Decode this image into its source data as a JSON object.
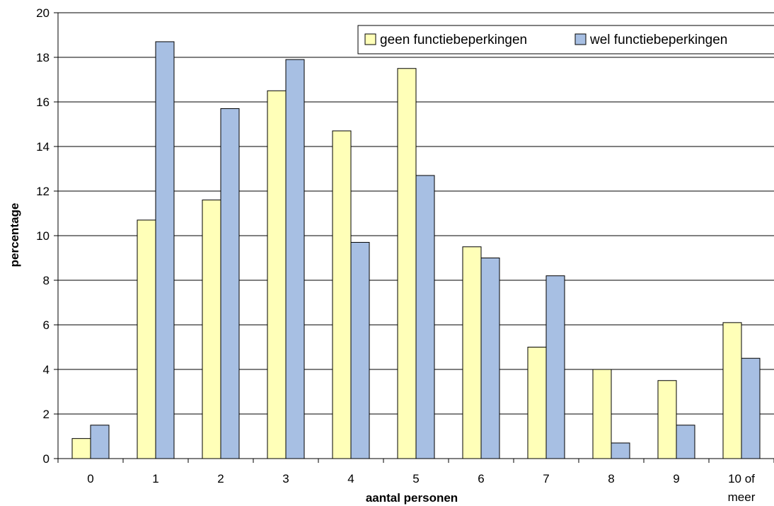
{
  "chart_data": {
    "type": "bar",
    "categories": [
      "0",
      "1",
      "2",
      "3",
      "4",
      "5",
      "6",
      "7",
      "8",
      "9",
      "10 of meer"
    ],
    "category_lines": [
      [
        "0"
      ],
      [
        "1"
      ],
      [
        "2"
      ],
      [
        "3"
      ],
      [
        "4"
      ],
      [
        "5"
      ],
      [
        "6"
      ],
      [
        "7"
      ],
      [
        "8"
      ],
      [
        "9"
      ],
      [
        "10 of",
        "meer"
      ]
    ],
    "series": [
      {
        "name": "geen functiebeperkingen",
        "color": "#FFFFB8",
        "values": [
          0.9,
          10.7,
          11.6,
          16.5,
          14.7,
          17.5,
          9.5,
          5.0,
          4.0,
          3.5,
          6.1
        ]
      },
      {
        "name": "wel functiebeperkingen",
        "color": "#A7BFE3",
        "values": [
          1.5,
          18.7,
          15.7,
          17.9,
          9.7,
          12.7,
          9.0,
          8.2,
          0.7,
          1.5,
          4.5
        ]
      }
    ],
    "xlabel": "aantal personen",
    "ylabel": "percentage",
    "ylim": [
      0,
      20
    ],
    "yticks": [
      0,
      2,
      4,
      6,
      8,
      10,
      12,
      14,
      16,
      18,
      20
    ],
    "grid": true,
    "legend": "top-right"
  }
}
